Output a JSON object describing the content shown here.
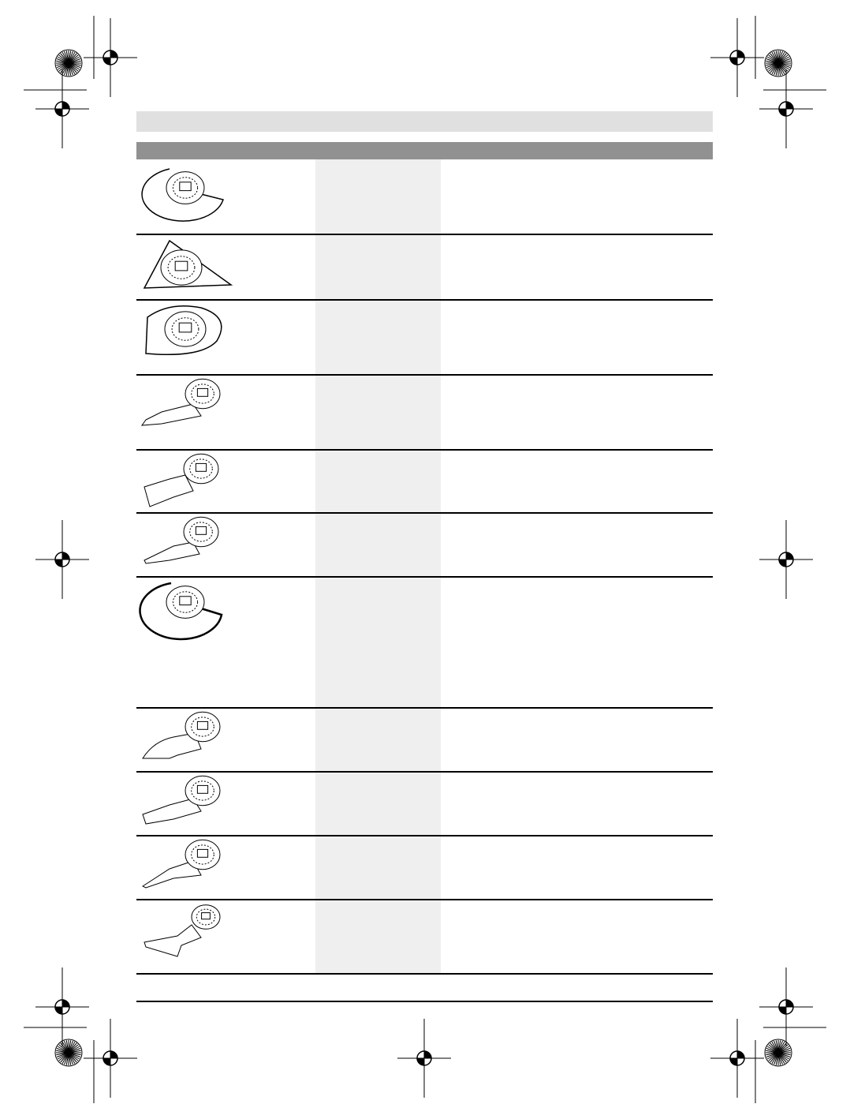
{
  "page": {
    "header_bar_color": "#e0e0e0",
    "table_header_color": "#919191",
    "highlight_column_color": "#efefef"
  },
  "table": {
    "rows": [
      {
        "icon": "segment-saw-blade-icon"
      },
      {
        "icon": "delta-sanding-plate-icon"
      },
      {
        "icon": "carbide-rasp-plate-icon"
      },
      {
        "icon": "grout-blade-icon"
      },
      {
        "icon": "scraper-rigid-icon"
      },
      {
        "icon": "scraper-flexible-icon"
      },
      {
        "icon": "segment-knife-blade-icon"
      },
      {
        "icon": "pointed-cutter-icon"
      },
      {
        "icon": "flat-scraper-icon"
      },
      {
        "icon": "narrow-cutter-icon"
      },
      {
        "icon": "plunge-cut-saw-blade-icon"
      }
    ]
  }
}
